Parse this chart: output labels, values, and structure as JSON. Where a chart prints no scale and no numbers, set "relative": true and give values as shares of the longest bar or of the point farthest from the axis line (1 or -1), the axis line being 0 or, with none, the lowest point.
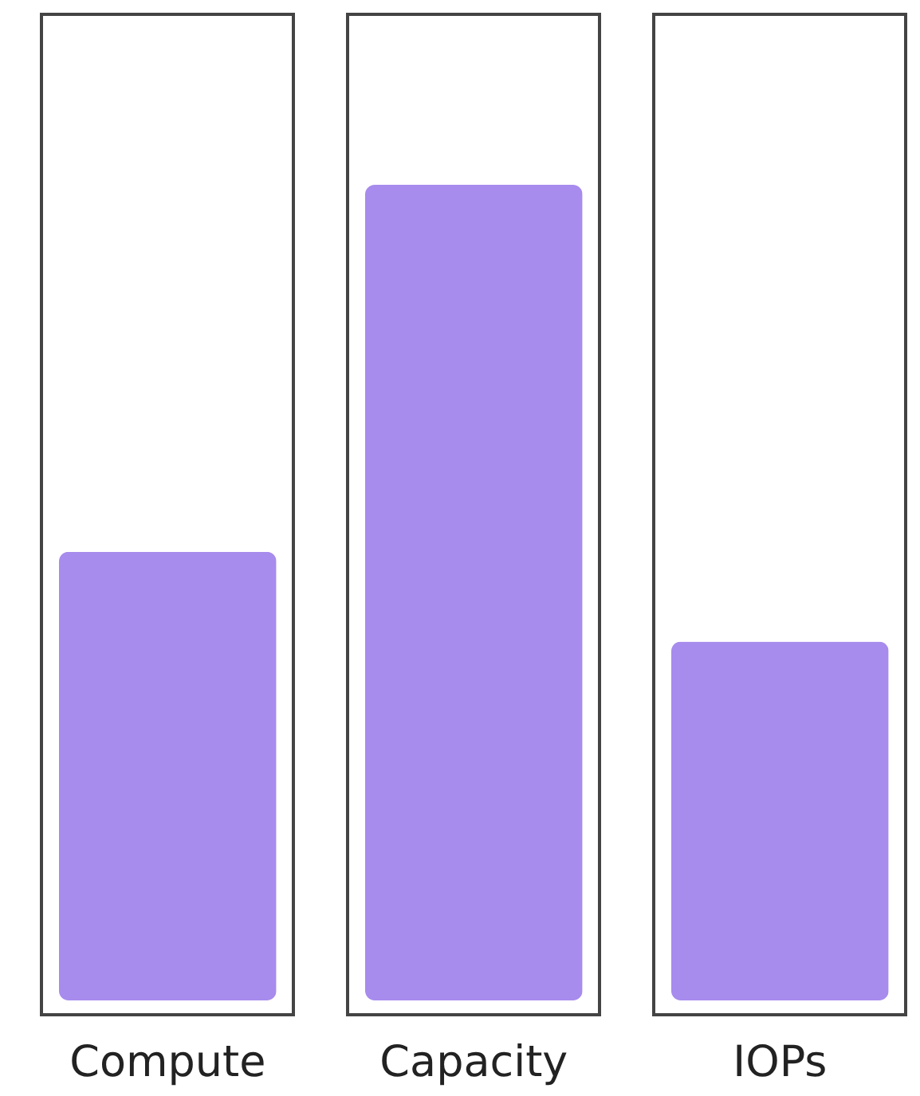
{
  "chart_data": {
    "type": "bar",
    "categories": [
      "Compute",
      "Capacity",
      "IOPs"
    ],
    "values": [
      0.55,
      1,
      0.44
    ],
    "color": "#a78bed",
    "relative": true
  }
}
